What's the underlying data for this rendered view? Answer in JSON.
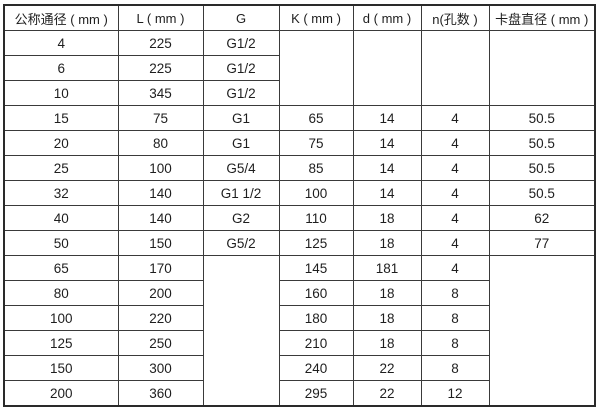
{
  "table": {
    "title": "dimension-spec-table",
    "border_color": "#3a3a3a",
    "text_color": "#1e1e1e",
    "background_color": "#ffffff",
    "headers": [
      "公称通径 ( mm )",
      "L ( mm )",
      "G",
      "K ( mm )",
      "d ( mm )",
      "n(孔数 )",
      "卡盘直径 ( mm )"
    ],
    "rows": [
      [
        "4",
        "225",
        "G1/2",
        {
          "t": "",
          "rs": 3
        },
        {
          "t": "",
          "rs": 3
        },
        {
          "t": "",
          "rs": 3
        },
        {
          "t": "",
          "rs": 3
        }
      ],
      [
        "6",
        "225",
        "G1/2"
      ],
      [
        "10",
        "345",
        "G1/2"
      ],
      [
        "15",
        "75",
        "G1",
        "65",
        "14",
        "4",
        "50.5"
      ],
      [
        "20",
        "80",
        "G1",
        "75",
        "14",
        "4",
        "50.5"
      ],
      [
        "25",
        "100",
        "G5/4",
        "85",
        "14",
        "4",
        "50.5"
      ],
      [
        "32",
        "140",
        "G1 1/2",
        "100",
        "14",
        "4",
        "50.5"
      ],
      [
        "40",
        "140",
        "G2",
        "110",
        "18",
        "4",
        "62"
      ],
      [
        "50",
        "150",
        "G5/2",
        "125",
        "18",
        "4",
        "77"
      ],
      [
        "65",
        "170",
        {
          "t": "",
          "rs": 6
        },
        "145",
        "181",
        "4",
        {
          "t": "",
          "rs": 6
        }
      ],
      [
        "80",
        "200",
        "160",
        "18",
        "8"
      ],
      [
        "100",
        "220",
        "180",
        "18",
        "8"
      ],
      [
        "125",
        "250",
        "210",
        "18",
        "8"
      ],
      [
        "150",
        "300",
        "240",
        "22",
        "8"
      ],
      [
        "200",
        "360",
        "295",
        "22",
        "12"
      ]
    ]
  }
}
